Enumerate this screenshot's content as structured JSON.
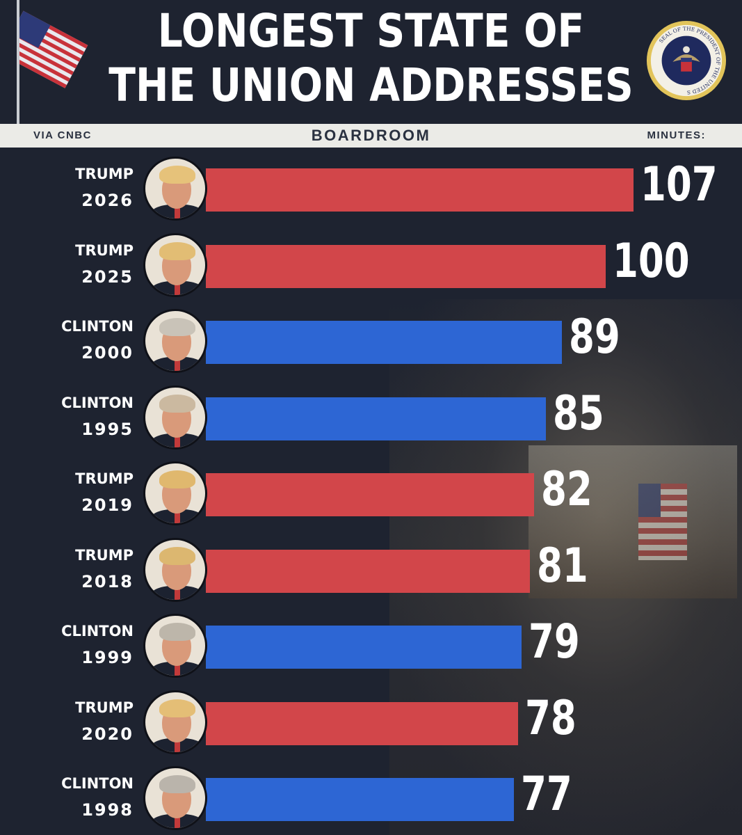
{
  "header": {
    "title_line1": "LONGEST STATE OF",
    "title_line2": "THE UNION ADDRESSES",
    "flag_icon": "us-flag-icon",
    "seal_icon": "presidential-seal-icon",
    "seal_text": "SEAL OF THE PRESIDENT OF THE UNITED STATES"
  },
  "subheader": {
    "source": "VIA CNBC",
    "brand": "BOARDROOM",
    "unit_label": "MINUTES:"
  },
  "colors": {
    "background": "#1e2330",
    "trump_bar": "#d2464a",
    "clinton_bar": "#2d66d4",
    "subheader_bg": "#ebebe7"
  },
  "chart_data": {
    "type": "bar",
    "orientation": "horizontal",
    "title": "LONGEST STATE OF THE UNION ADDRESSES",
    "unit": "MINUTES:",
    "categories": [
      "TRUMP 2026",
      "TRUMP 2025",
      "CLINTON 2000",
      "CLINTON 1995",
      "TRUMP 2019",
      "TRUMP 2018",
      "CLINTON 1999",
      "TRUMP 2020",
      "CLINTON 1998"
    ],
    "rows": [
      {
        "name": "TRUMP",
        "year": "2026",
        "minutes": 107,
        "party_color": "red"
      },
      {
        "name": "TRUMP",
        "year": "2025",
        "minutes": 100,
        "party_color": "red"
      },
      {
        "name": "CLINTON",
        "year": "2000",
        "minutes": 89,
        "party_color": "blue"
      },
      {
        "name": "CLINTON",
        "year": "1995",
        "minutes": 85,
        "party_color": "blue"
      },
      {
        "name": "TRUMP",
        "year": "2019",
        "minutes": 82,
        "party_color": "red"
      },
      {
        "name": "TRUMP",
        "year": "2018",
        "minutes": 81,
        "party_color": "red"
      },
      {
        "name": "CLINTON",
        "year": "1999",
        "minutes": 79,
        "party_color": "blue"
      },
      {
        "name": "TRUMP",
        "year": "2020",
        "minutes": 78,
        "party_color": "red"
      },
      {
        "name": "CLINTON",
        "year": "1998",
        "minutes": 77,
        "party_color": "blue"
      }
    ],
    "values": [
      107,
      100,
      89,
      85,
      82,
      81,
      79,
      78,
      77
    ],
    "xlim": [
      0,
      107
    ],
    "grid": false,
    "legend": "none"
  }
}
